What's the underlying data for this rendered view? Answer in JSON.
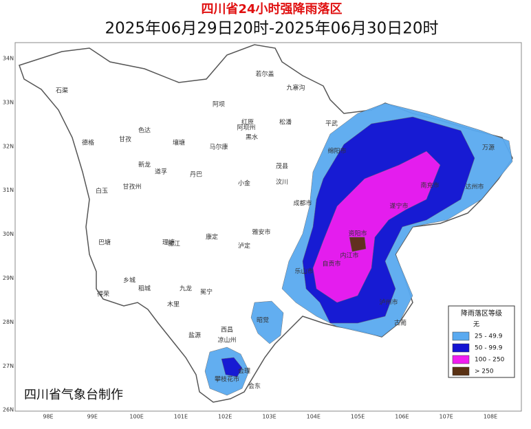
{
  "header": {
    "title": "四川省24小时强降雨落区",
    "subtitle": "2025年06月29日20时-2025年06月30日20时"
  },
  "axes": {
    "longitude": [
      "98E",
      "99E",
      "100E",
      "101E",
      "102E",
      "103E",
      "104E",
      "105E",
      "106E",
      "107E",
      "108E"
    ],
    "latitude": [
      "34N",
      "33N",
      "32N",
      "31N",
      "30N",
      "29N",
      "28N",
      "27N",
      "26N"
    ]
  },
  "legend": {
    "title": "降雨落区等级",
    "items": [
      {
        "label": "无",
        "color": "#ffffff"
      },
      {
        "label": "25 - 49.9",
        "color": "#5aaaf0"
      },
      {
        "label": "50 - 99.9",
        "color": "#1414d2"
      },
      {
        "label": "100 - 250",
        "color": "#f01ef0"
      },
      {
        "label": "> 250",
        "color": "#5a3214"
      }
    ]
  },
  "credit": "四川省气象台制作",
  "places": [
    "石渠",
    "若尔盖",
    "九寨沟",
    "阿坝",
    "红原",
    "阿坝州",
    "松潘",
    "平武",
    "德格",
    "甘孜",
    "色达",
    "壤塘",
    "马尔康",
    "黑水",
    "茂县",
    "绵阳市",
    "达州市",
    "万源",
    "南充市",
    "遂宁市",
    "资阳市",
    "内江市",
    "自贡市",
    "泸州市",
    "乐山市",
    "雅安市",
    "成都市",
    "甘孜州",
    "白玉",
    "新龙",
    "道孚",
    "丹巴",
    "小金",
    "汶川",
    "理塘",
    "巴塘",
    "雅江",
    "康定",
    "泸定",
    "乡城",
    "稻城",
    "得荣",
    "九龙",
    "木里",
    "冕宁",
    "西昌",
    "凉山州",
    "盐源",
    "会理",
    "攀枝花市",
    "昭觉",
    "古蔺",
    "会东"
  ]
}
